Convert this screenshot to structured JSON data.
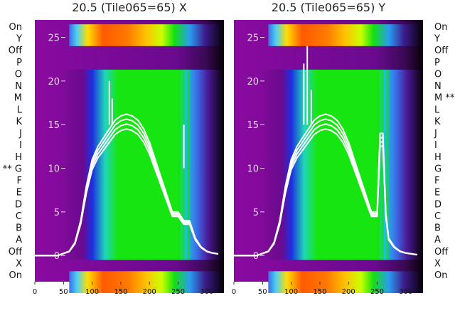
{
  "chart_data": [
    {
      "type": "heatmap",
      "title": "20.5 (Tile065=65) X",
      "xlim": [
        0,
        330
      ],
      "ylim": [
        -3,
        27
      ],
      "x_ticks": [
        0,
        50,
        100,
        150,
        200,
        250,
        300
      ],
      "y_ticks": [
        0,
        5,
        10,
        15,
        20,
        25
      ],
      "rows_top_to_bottom": [
        "On",
        "Y",
        "Off",
        "P",
        "O",
        "N",
        "M",
        "L",
        "K",
        "J",
        "I",
        "H",
        "** G",
        "F",
        "E",
        "D",
        "C",
        "B",
        "A",
        "Off",
        "X",
        "On"
      ],
      "overlay_series": {
        "type": "line",
        "color": "#ffffff",
        "x": [
          0,
          40,
          60,
          70,
          80,
          90,
          100,
          110,
          120,
          125,
          130,
          135,
          140,
          150,
          160,
          170,
          180,
          190,
          200,
          210,
          220,
          230,
          240,
          250,
          260,
          270,
          280,
          290,
          300,
          310,
          320
        ],
        "y": [
          0,
          0,
          0.5,
          1.5,
          4,
          8,
          11,
          12.5,
          13.5,
          14,
          14.5,
          15,
          15.5,
          16,
          16.2,
          16,
          15.5,
          14.5,
          13,
          11,
          9,
          7,
          5,
          5,
          4,
          4,
          2,
          1,
          0.5,
          0.3,
          0.2
        ],
        "spikes": [
          {
            "x": 130,
            "y": 20
          },
          {
            "x": 135,
            "y": 18
          },
          {
            "x": 260,
            "y": 10
          }
        ]
      }
    },
    {
      "type": "heatmap",
      "title": "20.5 (Tile065=65) Y",
      "xlim": [
        0,
        330
      ],
      "ylim": [
        -3,
        27
      ],
      "x_ticks": [
        0,
        50,
        100,
        150,
        200,
        250,
        300
      ],
      "y_ticks": [
        0,
        5,
        10,
        15,
        20,
        25
      ],
      "rows_top_to_bottom": [
        "On",
        "Y",
        "Off",
        "P",
        "O",
        "N",
        "M **",
        "L",
        "K",
        "J",
        "I",
        "H",
        "G",
        "F",
        "E",
        "D",
        "C",
        "B",
        "A",
        "Off",
        "X",
        "On"
      ],
      "overlay_series": {
        "type": "line",
        "color": "#ffffff",
        "x": [
          0,
          40,
          60,
          70,
          80,
          90,
          100,
          110,
          120,
          125,
          130,
          135,
          140,
          150,
          160,
          170,
          180,
          190,
          200,
          210,
          220,
          230,
          240,
          250,
          255,
          260,
          265,
          270,
          280,
          290,
          300,
          310,
          320
        ],
        "y": [
          0,
          0,
          0.5,
          1.5,
          4,
          8,
          11,
          12.5,
          13.5,
          14,
          14.5,
          15,
          15.5,
          16,
          16.2,
          16,
          15.5,
          14.5,
          13,
          11,
          9,
          7,
          5,
          5,
          14,
          14,
          5,
          2,
          1,
          0.5,
          0.3,
          0.2,
          0.1
        ],
        "spikes": [
          {
            "x": 122,
            "y": 22
          },
          {
            "x": 128,
            "y": 24
          },
          {
            "x": 135,
            "y": 19
          }
        ]
      }
    }
  ],
  "colors": {
    "frame_purple": "#6a0a8f",
    "green": "#22e011",
    "blue": "#2a9cf2",
    "white": "#ffffff"
  }
}
